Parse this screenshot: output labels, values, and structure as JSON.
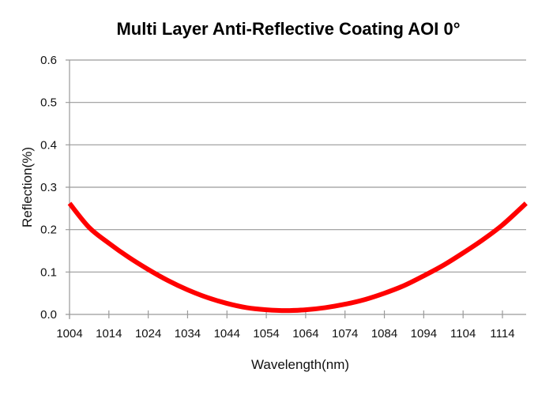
{
  "chart_data": {
    "type": "line",
    "title": "Multi Layer Anti-Reflective Coating AOI 0°",
    "xlabel": "Wavelength(nm)",
    "ylabel": "Reflection(%)",
    "xlim": [
      1004,
      1120
    ],
    "ylim": [
      0.0,
      0.6
    ],
    "x_ticks": [
      1004,
      1014,
      1024,
      1034,
      1044,
      1054,
      1064,
      1074,
      1084,
      1094,
      1104,
      1114
    ],
    "x_tick_labels": [
      "1004",
      "1014",
      "1024",
      "1034",
      "1044",
      "1054",
      "1064",
      "1074",
      "1084",
      "1094",
      "1104",
      "1114"
    ],
    "y_ticks": [
      0.0,
      0.1,
      0.2,
      0.3,
      0.4,
      0.5,
      0.6
    ],
    "y_tick_labels": [
      "0.0",
      "0.1",
      "0.2",
      "0.3",
      "0.4",
      "0.5",
      "0.6"
    ],
    "grid": "horizontal",
    "legend": "none",
    "series": [
      {
        "name": "Reflection",
        "color": "#ff0000",
        "x": [
          1004,
          1009,
          1014,
          1019,
          1024,
          1029,
          1034,
          1039,
          1044,
          1049,
          1054,
          1059,
          1064,
          1069,
          1074,
          1079,
          1084,
          1089,
          1094,
          1099,
          1104,
          1109,
          1114,
          1120
        ],
        "y": [
          0.262,
          0.205,
          0.168,
          0.135,
          0.106,
          0.08,
          0.058,
          0.04,
          0.026,
          0.016,
          0.011,
          0.009,
          0.011,
          0.016,
          0.024,
          0.035,
          0.05,
          0.068,
          0.091,
          0.116,
          0.145,
          0.176,
          0.211,
          0.262
        ]
      }
    ]
  }
}
